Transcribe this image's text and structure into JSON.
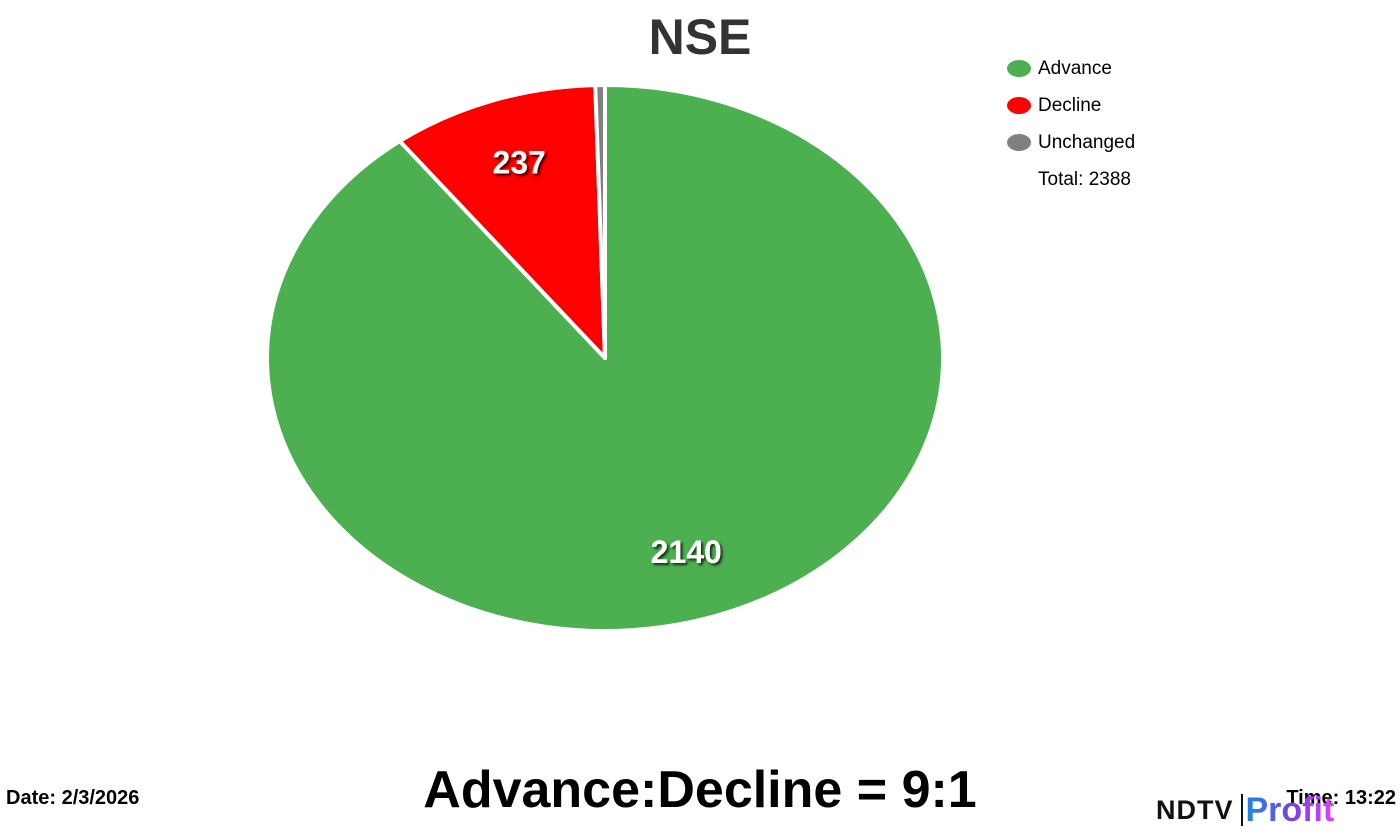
{
  "chart_data": {
    "type": "pie",
    "title": "NSE",
    "slices": [
      {
        "label": "Advance",
        "value": 2140,
        "color": "#4caf50",
        "show_label": true
      },
      {
        "label": "Decline",
        "value": 237,
        "color": "#ff0000",
        "show_label": true
      },
      {
        "label": "Unchanged",
        "value": 11,
        "color": "#808080",
        "show_label": false
      }
    ],
    "total_label": "Total: 2388",
    "legend_position": "top-right",
    "start": "top",
    "direction": "clockwise"
  },
  "footer": {
    "date": "Date: 2/3/2026",
    "ratio": "Advance:Decline = 9:1",
    "time": "Time: 13:22"
  },
  "logo": {
    "brand": "NDTV",
    "product": "Profit"
  }
}
